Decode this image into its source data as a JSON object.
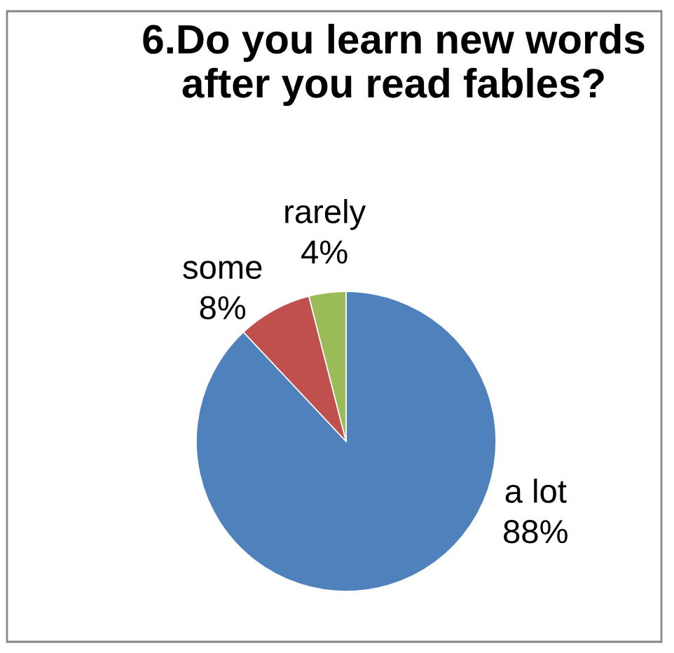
{
  "chart_data": {
    "type": "pie",
    "title": "6.Do you learn new words after you read fables?",
    "categories": [
      "a lot",
      "some",
      "rarely"
    ],
    "values": [
      88,
      8,
      4
    ],
    "colors": [
      "#4f81bd",
      "#c0504d",
      "#9bbb59"
    ],
    "value_labels": [
      "88%",
      "8%",
      "4%"
    ]
  }
}
